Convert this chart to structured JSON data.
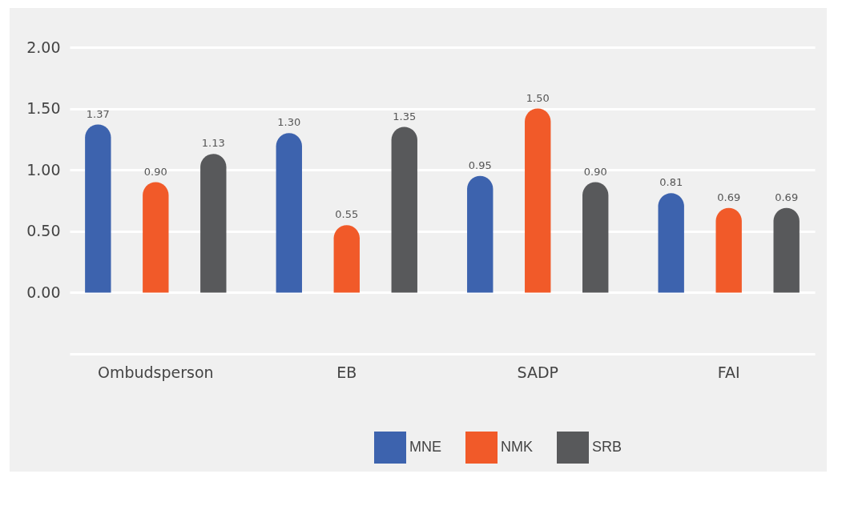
{
  "chart_data": {
    "type": "bar",
    "categories": [
      "Ombudsperson",
      "EB",
      "SADP",
      "FAI"
    ],
    "series": [
      {
        "name": "MNE",
        "color": "#3d63ae",
        "values": [
          1.37,
          1.3,
          0.95,
          0.81
        ],
        "value_labels": [
          "1.37",
          "1.30",
          "0.95",
          "0.81"
        ]
      },
      {
        "name": "NMK",
        "color": "#f15a29",
        "values": [
          0.9,
          0.55,
          1.5,
          0.69
        ],
        "value_labels": [
          "0.90",
          "0.55",
          "1.50",
          "0.69"
        ]
      },
      {
        "name": "SRB",
        "color": "#58595b",
        "values": [
          1.13,
          1.35,
          0.9,
          0.69
        ],
        "value_labels": [
          "1.13",
          "1.35",
          "0.90",
          "0.69"
        ]
      }
    ],
    "ylim": [
      -0.5,
      2
    ],
    "yticks": [
      {
        "value": 0,
        "label": "0.00"
      },
      {
        "value": 0.5,
        "label": "0.50"
      },
      {
        "value": 1,
        "label": "1.00"
      },
      {
        "value": 1.5,
        "label": "1.50"
      },
      {
        "value": 2,
        "label": "2.00"
      }
    ],
    "grid": "y",
    "legend": "bottom"
  }
}
